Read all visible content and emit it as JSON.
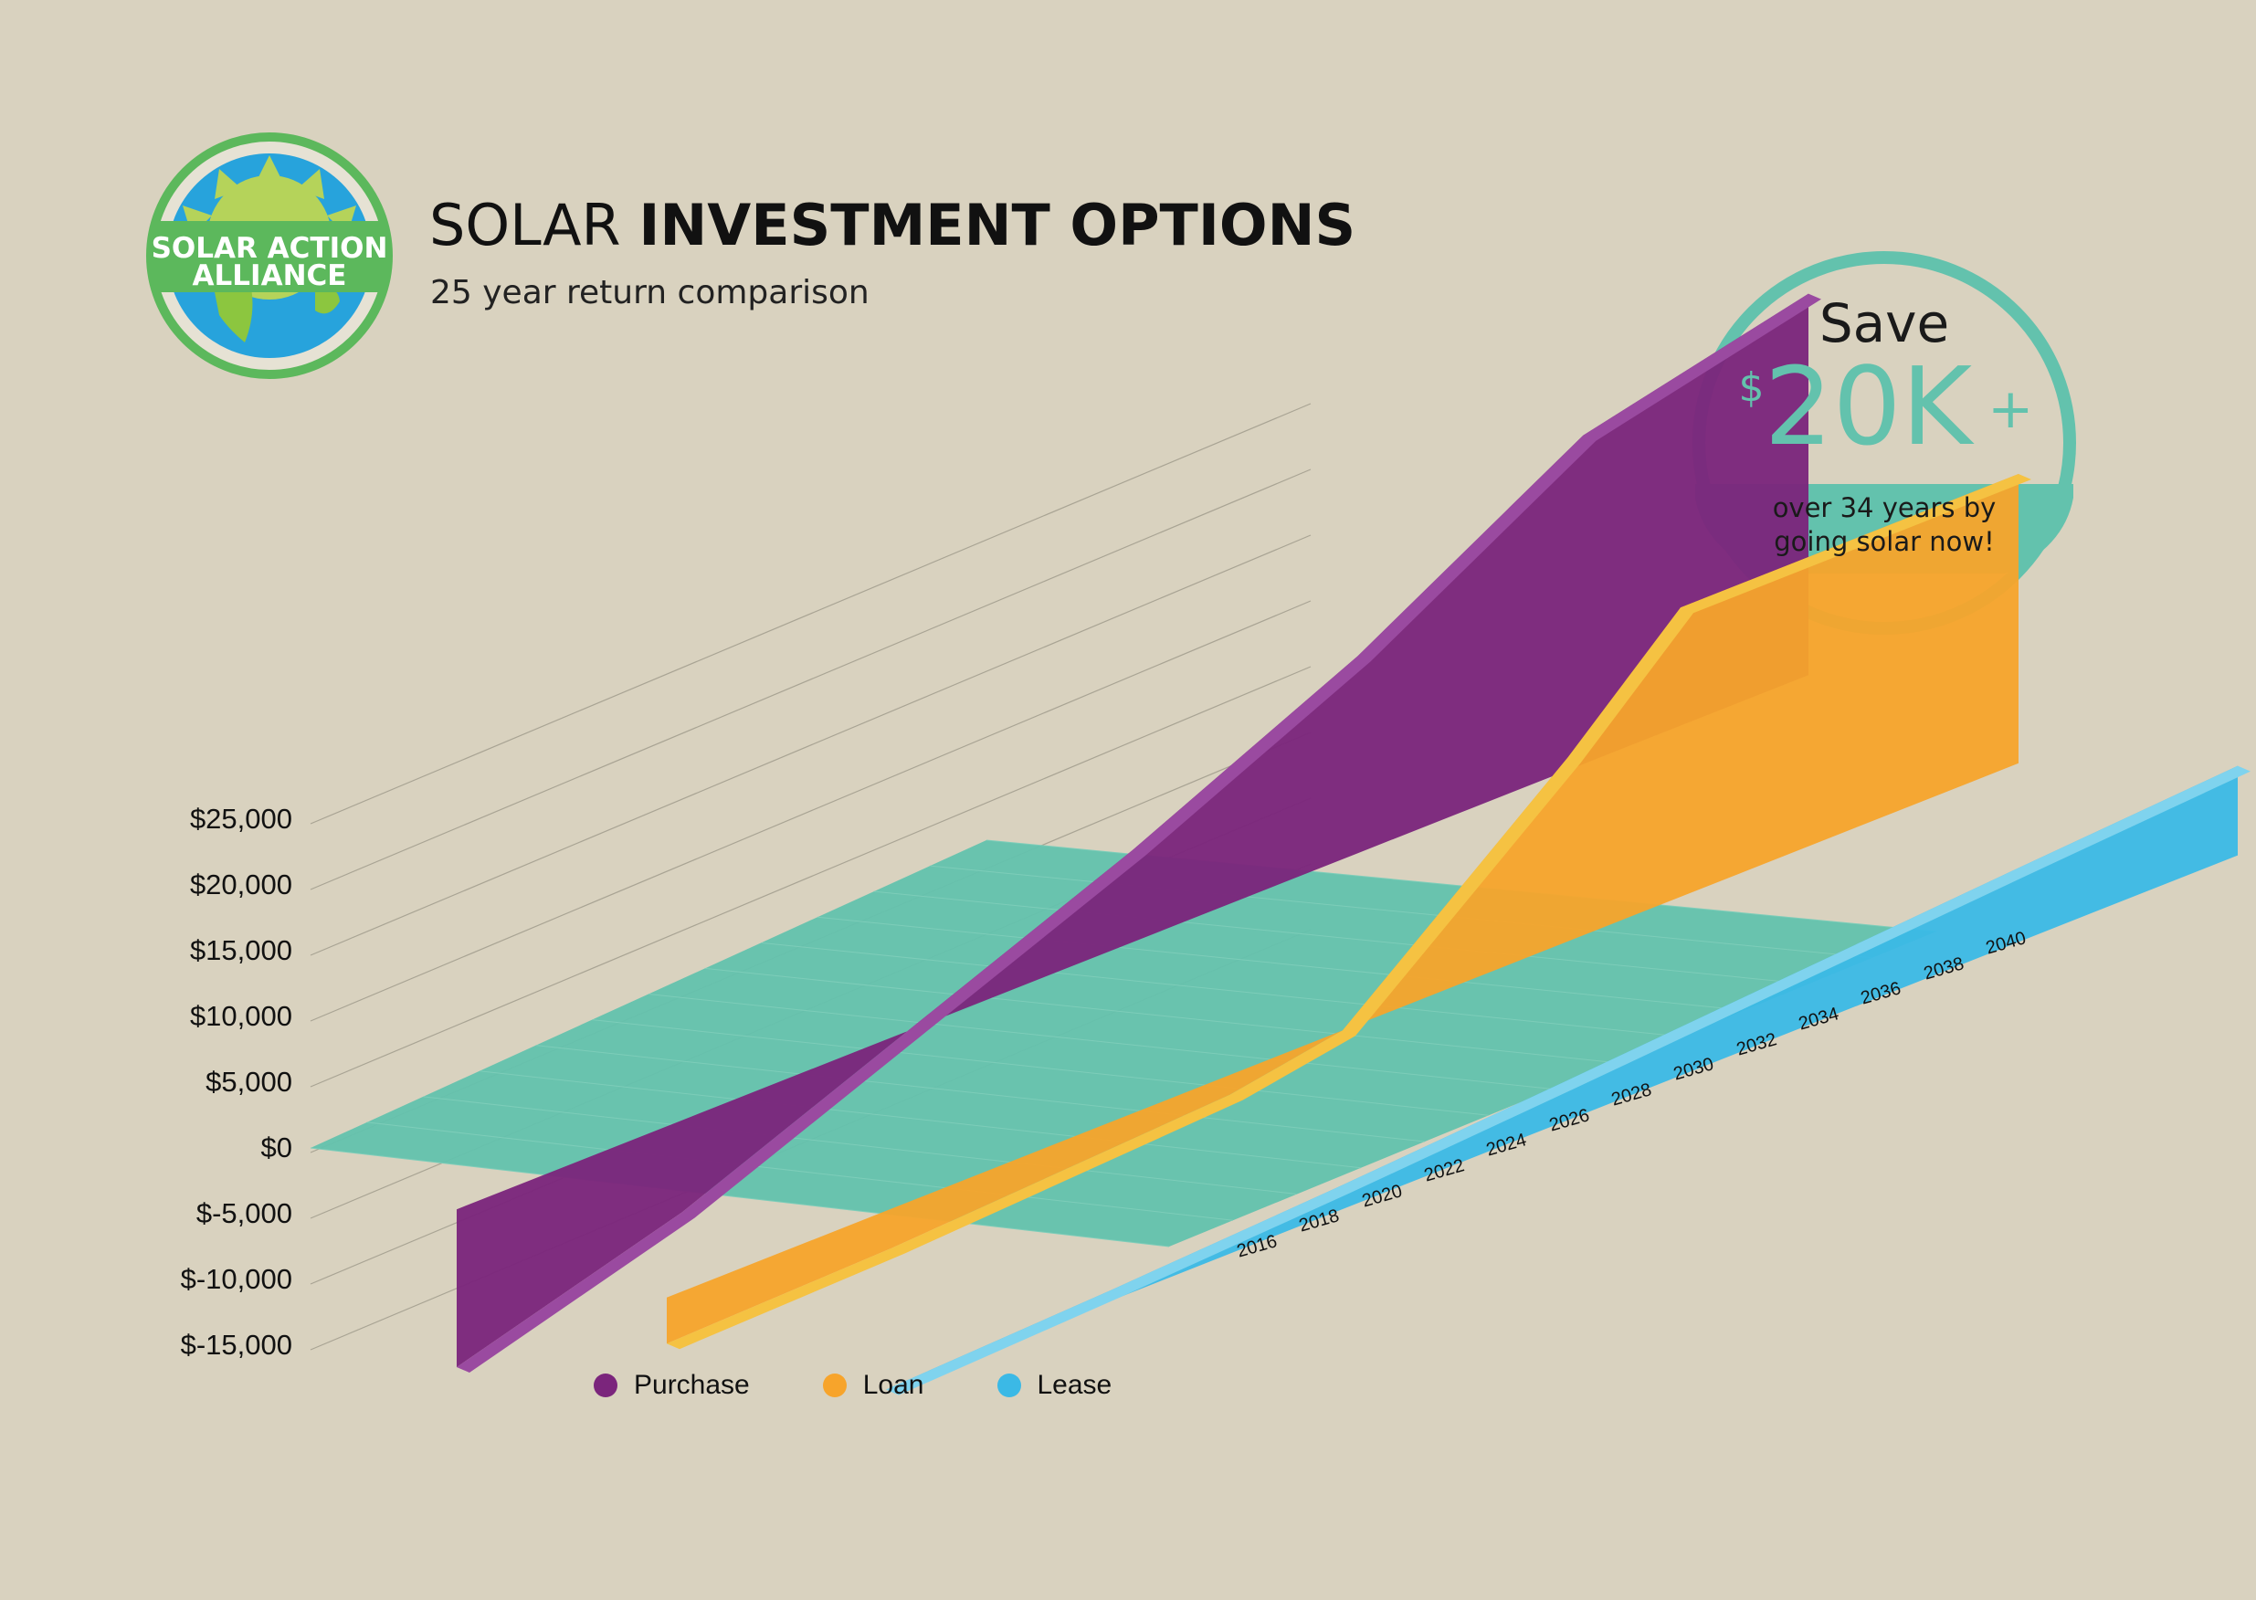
{
  "logo": {
    "line1": "SOLAR ACTION",
    "line2": "ALLIANCE",
    "colors": {
      "ring": "#5cb85c",
      "sun": "#b5d35a",
      "globe": "#27a3dc",
      "land": "#8cc63f"
    }
  },
  "title": {
    "light": "SOLAR",
    "bold": "INVESTMENT OPTIONS"
  },
  "subtitle": "25 year return comparison",
  "badge": {
    "save": "Save",
    "currency": "$",
    "amount": "20K",
    "plus": "+",
    "line1": "over 34 years by",
    "line2": "going solar now!",
    "color": "#63c2ad"
  },
  "legend": [
    {
      "label": "Purchase",
      "color": "#7b257c"
    },
    {
      "label": "Loan",
      "color": "#f7a42b"
    },
    {
      "label": "Lease",
      "color": "#3bb9e6"
    }
  ],
  "chart_data": {
    "type": "area",
    "y_tick_labels": [
      "$25,000",
      "$20,000",
      "$15,000",
      "$10,000",
      "$5,000",
      "$0",
      "$-5,000",
      "$-10,000",
      "$-15,000"
    ],
    "y_ticks": [
      25000,
      20000,
      15000,
      10000,
      5000,
      0,
      -5000,
      -10000,
      -15000
    ],
    "ylim": [
      -15000,
      25000
    ],
    "x_tick_labels": [
      "2016",
      "2018",
      "2020",
      "2022",
      "2024",
      "2026",
      "2028",
      "2030",
      "2032",
      "2034",
      "2036",
      "2038",
      "2040"
    ],
    "x_ticks": [
      2016,
      2018,
      2020,
      2022,
      2024,
      2026,
      2028,
      2030,
      2032,
      2034,
      2036,
      2038,
      2040
    ],
    "grid": true,
    "floor_color": "#63c2ad",
    "series": [
      {
        "name": "Purchase",
        "color": "#7b257c",
        "top_color": "#9a4aa0",
        "x": [
          2016,
          2020,
          2024,
          2028,
          2030,
          2032,
          2034,
          2036,
          2040
        ],
        "values": [
          -12000,
          -7000,
          0,
          7000,
          11000,
          15000,
          20000,
          25000,
          29000
        ]
      },
      {
        "name": "Loan",
        "color": "#f7a42b",
        "top_color": "#f5c242",
        "x": [
          2016,
          2020,
          2024,
          2026,
          2028,
          2030,
          2032,
          2034,
          2040
        ],
        "values": [
          -3500,
          -3000,
          -2000,
          -1500,
          0,
          7000,
          14000,
          22000,
          22000
        ]
      },
      {
        "name": "Lease",
        "color": "#3bb9e6",
        "top_color": "#7fd3ee",
        "x": [
          2016,
          2020,
          2024,
          2028,
          2032,
          2036,
          2040
        ],
        "values": [
          0,
          800,
          1800,
          3000,
          4300,
          5600,
          6800
        ]
      }
    ]
  }
}
